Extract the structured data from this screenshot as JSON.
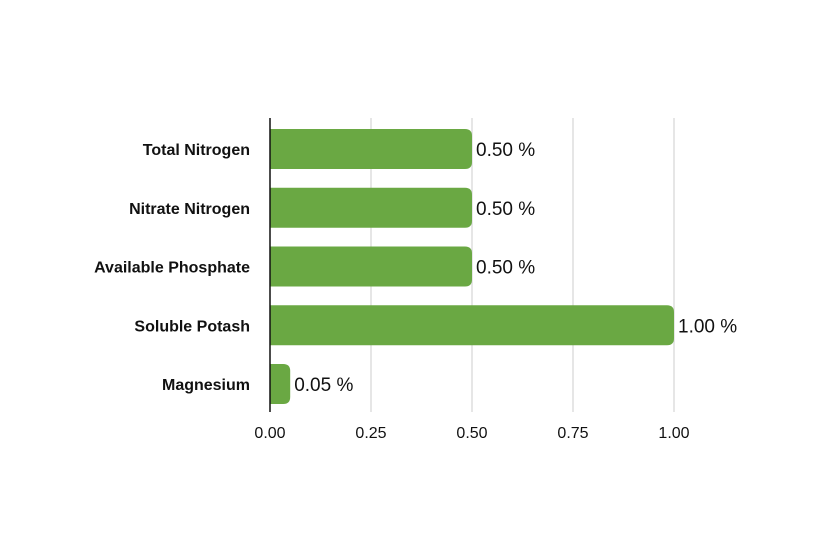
{
  "chart_data": {
    "type": "bar",
    "orientation": "horizontal",
    "categories": [
      "Total Nitrogen",
      "Nitrate Nitrogen",
      "Available Phosphate",
      "Soluble Potash",
      "Magnesium"
    ],
    "values": [
      0.5,
      0.5,
      0.5,
      1.0,
      0.05
    ],
    "data_labels": [
      "0.50 %",
      "0.50 %",
      "0.50 %",
      "1.00 %",
      "0.05 %"
    ],
    "title": "",
    "xlabel": "",
    "ylabel": "",
    "xlim": [
      0,
      1.0
    ],
    "x_ticks": [
      "0.00",
      "0.25",
      "0.50",
      "0.75",
      "1.00"
    ],
    "grid": true,
    "legend": "none",
    "colors": {
      "bar": "#6aa843",
      "grid": "#cccccc",
      "axis": "#111111"
    }
  }
}
